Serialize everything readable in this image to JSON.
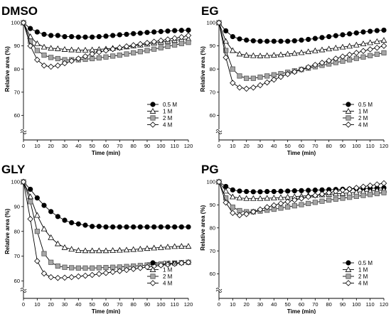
{
  "chart_data": [
    {
      "type": "line",
      "title": "DMSO",
      "xlabel": "Time (min)",
      "ylabel": "Relative area (%)",
      "xlim": [
        0,
        120
      ],
      "ylim": [
        60,
        100
      ],
      "yaxis_break": true,
      "xticks": [
        0,
        10,
        20,
        30,
        40,
        50,
        60,
        70,
        80,
        90,
        100,
        110,
        120
      ],
      "yticks": [
        60,
        70,
        80,
        90,
        100
      ],
      "legend_position": "bottom-right",
      "x": [
        0,
        5,
        10,
        15,
        20,
        25,
        30,
        35,
        40,
        45,
        50,
        55,
        60,
        65,
        70,
        75,
        80,
        85,
        90,
        95,
        100,
        105,
        110,
        115,
        120
      ],
      "series": [
        {
          "name": "0.5 M",
          "marker": "circle-filled",
          "values": [
            100,
            97.5,
            96,
            95,
            94.5,
            94.5,
            94,
            94,
            93.8,
            93.8,
            93.8,
            94,
            94.2,
            94.5,
            94.8,
            95,
            95.3,
            95.5,
            95.8,
            96,
            96.2,
            96.4,
            96.6,
            96.7,
            96.8
          ]
        },
        {
          "name": "1 M",
          "marker": "triangle-open",
          "values": [
            100,
            94,
            91,
            89.5,
            89,
            88.8,
            88.5,
            88.3,
            88.2,
            88.2,
            88.3,
            88.5,
            88.7,
            89,
            89.3,
            89.6,
            90,
            90.4,
            90.8,
            91.2,
            91.6,
            92,
            92.4,
            92.8,
            93
          ]
        },
        {
          "name": "2 M",
          "marker": "square-gray",
          "values": [
            100,
            92,
            88,
            86,
            85,
            84.5,
            84,
            84,
            84,
            84.2,
            84.5,
            84.8,
            85.2,
            85.6,
            86,
            86.5,
            87,
            87.5,
            88,
            88.6,
            89.2,
            89.8,
            90.4,
            91,
            91.5
          ]
        },
        {
          "name": "4 M",
          "marker": "diamond-open",
          "values": [
            100,
            90,
            84,
            81.5,
            81,
            81.5,
            82.5,
            83.5,
            84.5,
            85.5,
            86.5,
            87.3,
            88,
            88.6,
            89.2,
            89.8,
            90.3,
            90.8,
            91.3,
            91.8,
            92.3,
            92.8,
            93.3,
            93.8,
            94.5
          ]
        }
      ]
    },
    {
      "type": "line",
      "title": "EG",
      "xlabel": "Time (min)",
      "ylabel": "Relative area (%)",
      "xlim": [
        0,
        120
      ],
      "ylim": [
        60,
        100
      ],
      "yaxis_break": true,
      "xticks": [
        0,
        10,
        20,
        30,
        40,
        50,
        60,
        70,
        80,
        90,
        100,
        110,
        120
      ],
      "yticks": [
        60,
        70,
        80,
        90,
        100
      ],
      "legend_position": "bottom-right",
      "x": [
        0,
        5,
        10,
        15,
        20,
        25,
        30,
        35,
        40,
        45,
        50,
        55,
        60,
        65,
        70,
        75,
        80,
        85,
        90,
        95,
        100,
        105,
        110,
        115,
        120
      ],
      "series": [
        {
          "name": "0.5 M",
          "marker": "circle-filled",
          "values": [
            100,
            96.5,
            94,
            93,
            92.5,
            92.2,
            92,
            92,
            92,
            92,
            92,
            92.2,
            92.5,
            92.8,
            93.2,
            93.6,
            94,
            94.4,
            94.8,
            95.2,
            95.6,
            96,
            96.3,
            96.6,
            96.8
          ]
        },
        {
          "name": "1 M",
          "marker": "triangle-open",
          "values": [
            100,
            92,
            88,
            86.5,
            86,
            85.8,
            85.7,
            85.8,
            86,
            86.2,
            86.5,
            86.8,
            87.1,
            87.5,
            87.9,
            88.3,
            88.7,
            89.1,
            89.5,
            89.9,
            90.4,
            90.9,
            91.4,
            91.9,
            92.4
          ]
        },
        {
          "name": "2 M",
          "marker": "square-gray",
          "values": [
            100,
            88,
            80,
            77,
            76,
            76,
            76.5,
            77,
            77.5,
            78,
            78.6,
            79.2,
            79.8,
            80.4,
            81,
            81.6,
            82.2,
            82.8,
            83.4,
            84,
            84.6,
            85.2,
            85.8,
            86.4,
            87
          ]
        },
        {
          "name": "4 M",
          "marker": "diamond-open",
          "values": [
            100,
            85,
            74,
            72,
            71.5,
            72,
            73,
            74.2,
            75.4,
            76.6,
            77.8,
            78.8,
            79.8,
            80.8,
            81.8,
            82.7,
            83.6,
            84.5,
            85.4,
            86.2,
            87,
            87.8,
            88.5,
            89.2,
            90
          ]
        }
      ]
    },
    {
      "type": "line",
      "title": "GLY",
      "xlabel": "Time (min)",
      "ylabel": "Relative area (%)",
      "xlim": [
        0,
        120
      ],
      "ylim": [
        50,
        100
      ],
      "yaxis_break": true,
      "xticks": [
        0,
        10,
        20,
        30,
        40,
        50,
        60,
        70,
        80,
        90,
        100,
        110,
        120
      ],
      "yticks": [
        60,
        70,
        80,
        90,
        100
      ],
      "legend_position": "bottom-right",
      "x": [
        0,
        5,
        10,
        15,
        20,
        25,
        30,
        35,
        40,
        45,
        50,
        55,
        60,
        65,
        70,
        75,
        80,
        85,
        90,
        95,
        100,
        105,
        110,
        115,
        120
      ],
      "series": [
        {
          "name": "0.5 M",
          "marker": "circle-filled",
          "values": [
            100,
            97,
            93.5,
            90.5,
            88,
            86,
            84.5,
            83.5,
            83,
            82.5,
            82,
            82,
            81.8,
            81.8,
            81.8,
            81.8,
            81.8,
            81.8,
            81.8,
            81.8,
            81.8,
            81.8,
            81.8,
            81.8,
            81.8
          ]
        },
        {
          "name": "1 M",
          "marker": "triangle-open",
          "values": [
            100,
            94,
            86.5,
            81,
            77.5,
            75,
            73.5,
            72.8,
            72.3,
            72.2,
            72.2,
            72.2,
            72.2,
            72.3,
            72.4,
            72.5,
            72.7,
            72.9,
            73.1,
            73.3,
            73.5,
            73.7,
            73.9,
            74,
            74
          ]
        },
        {
          "name": "2 M",
          "marker": "square-gray",
          "values": [
            100,
            92,
            80,
            71,
            67.5,
            66,
            65.5,
            65.3,
            65.2,
            65.2,
            65.2,
            65.3,
            65.4,
            65.5,
            65.6,
            65.8,
            66,
            66.2,
            66.4,
            66.6,
            66.8,
            67,
            67.2,
            67.4,
            67.5
          ]
        },
        {
          "name": "4 M",
          "marker": "diamond-open",
          "values": [
            100,
            85,
            68,
            63,
            61.5,
            61.2,
            61.3,
            61.5,
            61.8,
            62.1,
            62.4,
            62.8,
            63.2,
            63.6,
            64,
            64.4,
            64.8,
            65.2,
            65.6,
            66,
            66.3,
            66.6,
            66.9,
            67.2,
            67.5
          ]
        }
      ]
    },
    {
      "type": "line",
      "title": "PG",
      "xlabel": "Time (min)",
      "ylabel": "Relative area (%)",
      "xlim": [
        0,
        120
      ],
      "ylim": [
        60,
        100
      ],
      "yaxis_break": true,
      "xticks": [
        0,
        10,
        20,
        30,
        40,
        50,
        60,
        70,
        80,
        90,
        100,
        110,
        120
      ],
      "yticks": [
        60,
        70,
        80,
        90,
        100
      ],
      "legend_position": "bottom-right",
      "x": [
        0,
        5,
        10,
        15,
        20,
        25,
        30,
        35,
        40,
        45,
        50,
        55,
        60,
        65,
        70,
        75,
        80,
        85,
        90,
        95,
        100,
        105,
        110,
        115,
        120
      ],
      "series": [
        {
          "name": "0.5 M",
          "marker": "circle-filled",
          "values": [
            100,
            98,
            96.5,
            96,
            95.8,
            95.7,
            95.7,
            95.8,
            95.8,
            95.9,
            96,
            96.1,
            96.2,
            96.3,
            96.4,
            96.5,
            96.6,
            96.7,
            96.8,
            96.9,
            97,
            97.1,
            97.2,
            97.3,
            97.4
          ]
        },
        {
          "name": "1 M",
          "marker": "triangle-open",
          "values": [
            100,
            96,
            93.5,
            93,
            92.8,
            92.8,
            92.8,
            92.9,
            93,
            93.2,
            93.4,
            93.6,
            93.8,
            94,
            94.2,
            94.4,
            94.6,
            94.8,
            95,
            95.2,
            95.5,
            95.8,
            96,
            96.3,
            96.5
          ]
        },
        {
          "name": "2 M",
          "marker": "square-gray",
          "values": [
            100,
            93,
            89,
            87.5,
            87,
            87,
            87.3,
            87.7,
            88.1,
            88.6,
            89.1,
            89.6,
            90.1,
            90.6,
            91.1,
            91.6,
            92.1,
            92.5,
            92.9,
            93.3,
            93.7,
            94.1,
            94.5,
            94.9,
            95.3
          ]
        },
        {
          "name": "4 M",
          "marker": "diamond-open",
          "values": [
            100,
            91,
            86.5,
            85.5,
            86,
            87,
            88,
            89,
            89.8,
            90.6,
            91.4,
            92.1,
            92.8,
            93.5,
            94.1,
            94.7,
            95.3,
            95.9,
            96.4,
            96.9,
            97.4,
            97.9,
            98.4,
            98.9,
            99.4
          ]
        }
      ]
    }
  ]
}
